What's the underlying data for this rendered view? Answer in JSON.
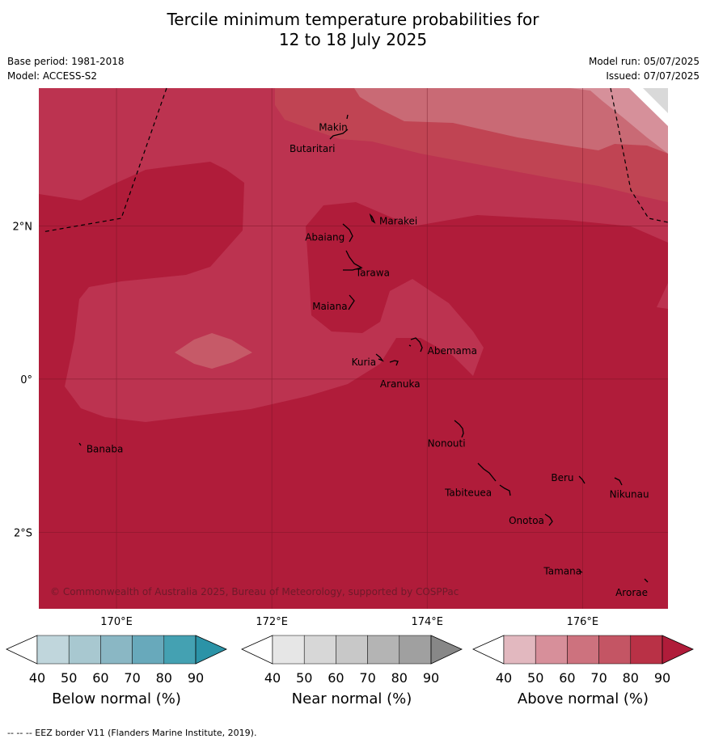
{
  "title_line1": "Tercile minimum temperature probabilities for",
  "title_line2": "12 to 18 July 2025",
  "base_period": "Base period: 1981-2018",
  "model": "Model: ACCESS-S2",
  "model_run": "Model run: 05/07/2025",
  "issued": "Issued: 07/07/2025",
  "map": {
    "lon_range": [
      169.0,
      177.1
    ],
    "lat_range": [
      -3.0,
      3.8
    ],
    "lon_ticks": [
      {
        "value": 170,
        "label": "170°E"
      },
      {
        "value": 172,
        "label": "172°E"
      },
      {
        "value": 174,
        "label": "174°E"
      },
      {
        "value": 176,
        "label": "176°E"
      }
    ],
    "lat_ticks": [
      {
        "value": 2,
        "label": "2°N"
      },
      {
        "value": 0,
        "label": "0°"
      },
      {
        "value": -2,
        "label": "2°S"
      }
    ],
    "places": [
      {
        "name": "Makin",
        "lon": 173.0,
        "lat": 3.33
      },
      {
        "name": "Butaritari",
        "lon": 172.8,
        "lat": 3.05
      },
      {
        "name": "Marakei",
        "lon": 173.3,
        "lat": 2.0
      },
      {
        "name": "Abaiang",
        "lon": 173.0,
        "lat": 1.83
      },
      {
        "name": "Tarawa",
        "lon": 173.1,
        "lat": 1.4
      },
      {
        "name": "Maiana",
        "lon": 173.0,
        "lat": 0.95
      },
      {
        "name": "Abemama",
        "lon": 173.9,
        "lat": 0.37
      },
      {
        "name": "Kuria",
        "lon": 173.4,
        "lat": 0.22
      },
      {
        "name": "Aranuka",
        "lon": 173.6,
        "lat": 0.17
      },
      {
        "name": "Nonouti",
        "lon": 174.4,
        "lat": -0.67
      },
      {
        "name": "Banaba",
        "lon": 169.55,
        "lat": -0.87
      },
      {
        "name": "Beru",
        "lon": 176.0,
        "lat": -1.33
      },
      {
        "name": "Nikunau",
        "lon": 176.45,
        "lat": -1.37
      },
      {
        "name": "Tabiteuea",
        "lon": 174.8,
        "lat": -1.35
      },
      {
        "name": "Onotoa",
        "lon": 175.55,
        "lat": -1.82
      },
      {
        "name": "Tamana",
        "lon": 175.98,
        "lat": -2.5
      },
      {
        "name": "Arorae",
        "lon": 176.82,
        "lat": -2.65
      }
    ],
    "copyright": "© Commonwealth of Australia 2025, Bureau of Meteorology, supported by COSPPac",
    "colors": {
      "above_90": "#b01c3a",
      "above_80": "#bc3350",
      "above_70": "#c65a68",
      "above_60": "#d6909a",
      "near_high": "#d8d8d8",
      "grid": "#6e1222"
    }
  },
  "colorbars": [
    {
      "label": "Below normal (%)",
      "ticks": [
        "40",
        "50",
        "60",
        "70",
        "80",
        "90"
      ],
      "colors": [
        "#ffffff",
        "#c0d6dc",
        "#a8c8d0",
        "#8ab7c4",
        "#68a9bb",
        "#44a1b2",
        "#2b93a7"
      ]
    },
    {
      "label": "Near normal (%)",
      "ticks": [
        "40",
        "50",
        "60",
        "70",
        "80",
        "90"
      ],
      "colors": [
        "#ffffff",
        "#e6e6e6",
        "#d7d7d7",
        "#c8c8c8",
        "#b4b4b4",
        "#a0a0a0",
        "#878787"
      ]
    },
    {
      "label": "Above normal (%)",
      "ticks": [
        "40",
        "50",
        "60",
        "70",
        "80",
        "90"
      ],
      "colors": [
        "#ffffff",
        "#e2b8bf",
        "#d78f9a",
        "#cd727e",
        "#c45564",
        "#b93146",
        "#b01c3a"
      ]
    }
  ],
  "footer": "--  --  -- EEZ border V11 (Flanders Marine Institute, 2019)."
}
